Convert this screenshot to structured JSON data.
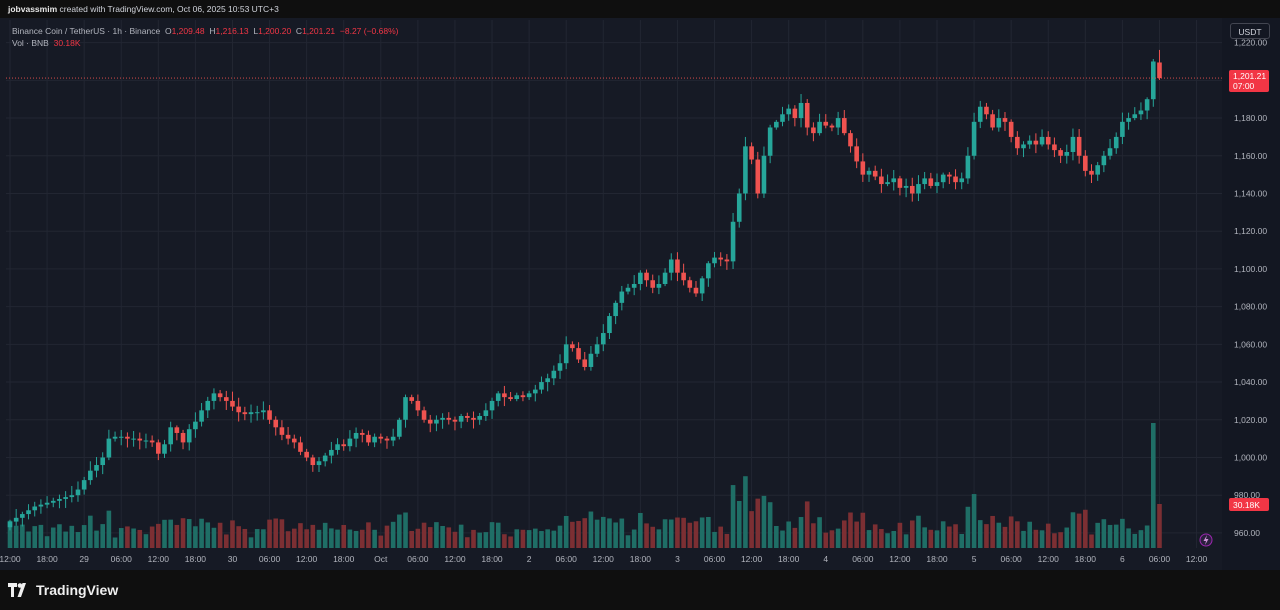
{
  "header": {
    "author": "jobvassmim",
    "text": "created with TradingView.com, Oct 06, 2025 10:53 UTC+3"
  },
  "legend": {
    "symbol": "Binance Coin / TetherUS · 1h · Binance",
    "o_label": "O",
    "o": "1,209.48",
    "h_label": "H",
    "h": "1,216.13",
    "l_label": "L",
    "l": "1,200.20",
    "c_label": "C",
    "c": "1,201.21",
    "change": "−8.27 (−0.68%)",
    "vol_label": "Vol · BNB",
    "vol": "30.18K"
  },
  "currency_button": "USDT",
  "last_price": {
    "value": "1,201.21",
    "countdown": "07:00"
  },
  "volume_badge": "30.18K",
  "logo_text": "TradingView",
  "colors": {
    "up": "#26a69a",
    "down": "#ef5350",
    "up_vol": "#1f6e66",
    "down_vol": "#7c2f33",
    "background": "#161a25",
    "grid": "#222632"
  },
  "chart_data": {
    "type": "candlestick",
    "symbol": "BNBUSDT",
    "interval": "1h",
    "y_ticks": [
      960,
      980,
      1000,
      1020,
      1040,
      1060,
      1080,
      1100,
      1120,
      1140,
      1160,
      1180,
      1200,
      1220
    ],
    "ylim": [
      952,
      1232
    ],
    "x_ticks": [
      "12:00",
      "18:00",
      "29",
      "06:00",
      "12:00",
      "18:00",
      "30",
      "06:00",
      "12:00",
      "18:00",
      "Oct",
      "06:00",
      "12:00",
      "18:00",
      "2",
      "06:00",
      "12:00",
      "18:00",
      "3",
      "06:00",
      "12:00",
      "18:00",
      "4",
      "06:00",
      "12:00",
      "18:00",
      "5",
      "06:00",
      "12:00",
      "18:00",
      "6",
      "06:00",
      "12:00"
    ],
    "x_start": "2025-09-28 12:00",
    "closes": [
      966,
      968,
      970,
      972,
      974,
      975,
      976,
      977,
      978,
      979,
      980,
      983,
      988,
      993,
      996,
      1000,
      1010,
      1011,
      1011,
      1010,
      1010,
      1009,
      1009,
      1008,
      1002,
      1007,
      1016,
      1013,
      1008,
      1015,
      1019,
      1025,
      1030,
      1034,
      1032,
      1030,
      1027,
      1024,
      1023,
      1024,
      1024,
      1025,
      1020,
      1016,
      1012,
      1010,
      1008,
      1003,
      1000,
      996,
      998,
      1001,
      1004,
      1007,
      1006,
      1010,
      1013,
      1012,
      1008,
      1011,
      1010,
      1009,
      1011,
      1020,
      1032,
      1030,
      1025,
      1020,
      1018,
      1020,
      1021,
      1020,
      1019,
      1022,
      1021,
      1020,
      1022,
      1025,
      1030,
      1034,
      1032,
      1031,
      1033,
      1032,
      1034,
      1036,
      1040,
      1042,
      1046,
      1050,
      1060,
      1058,
      1052,
      1048,
      1055,
      1060,
      1066,
      1075,
      1082,
      1088,
      1090,
      1092,
      1098,
      1094,
      1090,
      1092,
      1098,
      1105,
      1098,
      1094,
      1090,
      1087,
      1095,
      1103,
      1106,
      1105,
      1104,
      1125,
      1140,
      1165,
      1158,
      1140,
      1160,
      1175,
      1178,
      1182,
      1185,
      1180,
      1188,
      1175,
      1172,
      1178,
      1176,
      1175,
      1180,
      1172,
      1165,
      1157,
      1150,
      1152,
      1149,
      1145,
      1146,
      1148,
      1143,
      1144,
      1140,
      1145,
      1148,
      1144,
      1146,
      1150,
      1149,
      1146,
      1148,
      1160,
      1178,
      1186,
      1182,
      1175,
      1180,
      1178,
      1170,
      1164,
      1166,
      1168,
      1166,
      1170,
      1166,
      1163,
      1160,
      1162,
      1170,
      1160,
      1152,
      1150,
      1155,
      1160,
      1164,
      1170,
      1178,
      1180,
      1182,
      1184,
      1190,
      1210,
      1201.21
    ],
    "last_candle": {
      "open": 1209.48,
      "high": 1216.13,
      "low": 1200.2,
      "close": 1201.21
    },
    "last_volume": "30.18K"
  }
}
